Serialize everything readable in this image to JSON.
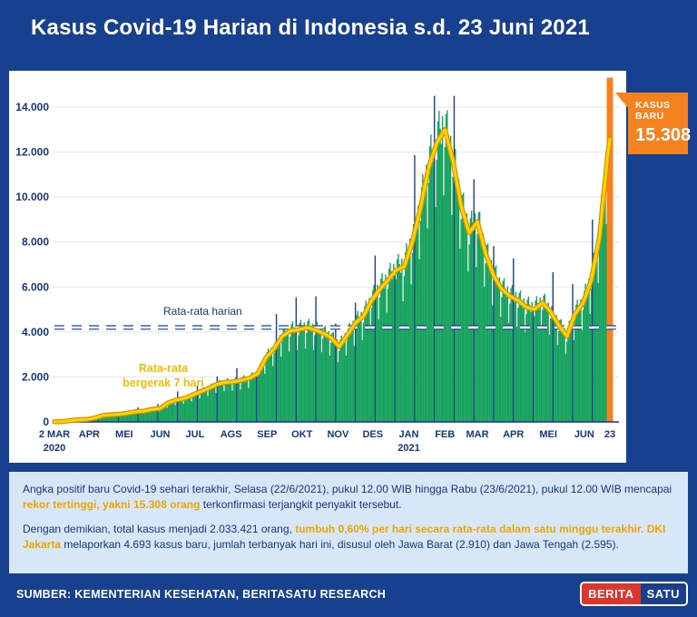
{
  "page": {
    "title": "Kasus Covid-19 Harian di Indonesia s.d. 23 Juni 2021",
    "source": "SUMBER: KEMENTERIAN KESEHATAN, BERITASATU RESEARCH",
    "logo": {
      "part1": "BERITA",
      "part2": "SATU"
    }
  },
  "callout": {
    "label": "KASUS BARU",
    "value": "15.308"
  },
  "annotations": {
    "daily_avg": "Rata-rata harian",
    "ma7_line1": "Rata-rata",
    "ma7_line2": "bergerak 7 hari"
  },
  "info": {
    "p1": [
      {
        "text": "Angka positif baru Covid-19 sehari terakhir, Selasa (22/6/2021), pukul 12.00 WIB hingga Rabu (23/6/2021), pukul 12.00 WIB mencapai ",
        "hl": false
      },
      {
        "text": "rekor tertinggi, yakni 15.308 orang",
        "hl": true
      },
      {
        "text": " terkonfirmasi terjangkit penyakit tersebut.",
        "hl": false
      }
    ],
    "p2": [
      {
        "text": "Dengan demikian, total kasus menjadi 2.033.421 orang, ",
        "hl": false
      },
      {
        "text": "tumbuh 0,60% per hari secara rata-rata dalam satu minggu terakhir.",
        "hl": true
      },
      {
        "text": " ",
        "hl": false
      },
      {
        "text": "DKI Jakarta",
        "hl": true
      },
      {
        "text": " melaporkan 4.693 kasus baru, jumlah terbanyak hari ini, disusul oleh Jawa Barat (2.910) dan Jawa Tengah (2.595).",
        "hl": false
      }
    ]
  },
  "chart_data": {
    "type": "bar",
    "title": "Kasus Covid-19 Harian di Indonesia s.d. 23 Juni 2021",
    "xlabel": "",
    "ylabel": "",
    "ylim": [
      0,
      14000
    ],
    "grid": true,
    "y_ticks": [
      {
        "v": 0,
        "label": "0"
      },
      {
        "v": 2000,
        "label": "2.000"
      },
      {
        "v": 4000,
        "label": "4.000"
      },
      {
        "v": 6000,
        "label": "6.000"
      },
      {
        "v": 8000,
        "label": "8.000"
      },
      {
        "v": 10000,
        "label": "10.000"
      },
      {
        "v": 12000,
        "label": "12.000"
      },
      {
        "v": 14000,
        "label": "14.000"
      }
    ],
    "x_ticks": [
      {
        "day": 0,
        "label": "2 MAR",
        "sub": "2020"
      },
      {
        "day": 30,
        "label": "APR"
      },
      {
        "day": 60,
        "label": "MEI"
      },
      {
        "day": 91,
        "label": "JUN"
      },
      {
        "day": 121,
        "label": "JUL"
      },
      {
        "day": 152,
        "label": "AGS"
      },
      {
        "day": 183,
        "label": "SEP"
      },
      {
        "day": 213,
        "label": "OKT"
      },
      {
        "day": 244,
        "label": "NOV"
      },
      {
        "day": 274,
        "label": "DES"
      },
      {
        "day": 305,
        "label": "JAN",
        "sub": "2021"
      },
      {
        "day": 336,
        "label": "FEB"
      },
      {
        "day": 364,
        "label": "MAR"
      },
      {
        "day": 395,
        "label": "APR"
      },
      {
        "day": 425,
        "label": "MEI"
      },
      {
        "day": 456,
        "label": "JUN"
      },
      {
        "day": 478,
        "label": "23"
      }
    ],
    "days_total": 478,
    "start_label": "2 MAR 2020",
    "end_label": "23 JUN 2021",
    "daily_average": 4200,
    "latest_bar": 15308,
    "series": [
      {
        "name": "Kasus harian",
        "style": "bar"
      },
      {
        "name": "Rata-rata bergerak 7 hari",
        "style": "line"
      }
    ],
    "ma7_weekly_values": [
      5,
      20,
      60,
      100,
      110,
      180,
      290,
      320,
      340,
      390,
      450,
      480,
      560,
      600,
      850,
      980,
      1050,
      1200,
      1350,
      1500,
      1680,
      1760,
      1780,
      1860,
      1950,
      2150,
      2850,
      3250,
      3800,
      4050,
      4100,
      4200,
      4100,
      3950,
      3750,
      3350,
      3850,
      4400,
      4700,
      5400,
      5900,
      6300,
      6750,
      6900,
      8000,
      9500,
      11300,
      12400,
      13000,
      11600,
      9600,
      8400,
      8900,
      7500,
      6500,
      5900,
      5600,
      5400,
      5100,
      5000,
      5300,
      4900,
      4300,
      3800,
      4800,
      5300,
      6300,
      8200,
      11800,
      14500
    ],
    "weekday_pattern": [
      0.94,
      1.07,
      1.1,
      1.03,
      0.97,
      1.06,
      0.78
    ],
    "spike_every": 17,
    "spike_scale": 1.28,
    "bar_cap": 14500,
    "colors": {
      "background": "#17418f",
      "panel": "#ffffff",
      "bar": "#17a35f",
      "spike": "#1c3f8e",
      "ma_line": "#ffd500",
      "ma_outline": "#d98f00",
      "latest": "#f5821f",
      "dashed": "#ffffff",
      "dashed_outline": "#1b3e8c",
      "axis": "#16377e",
      "grid": "#e6e6e6",
      "highlight_text": "#f0a400",
      "info_bg": "#d8e7f7",
      "logo_red": "#e0352f"
    }
  }
}
